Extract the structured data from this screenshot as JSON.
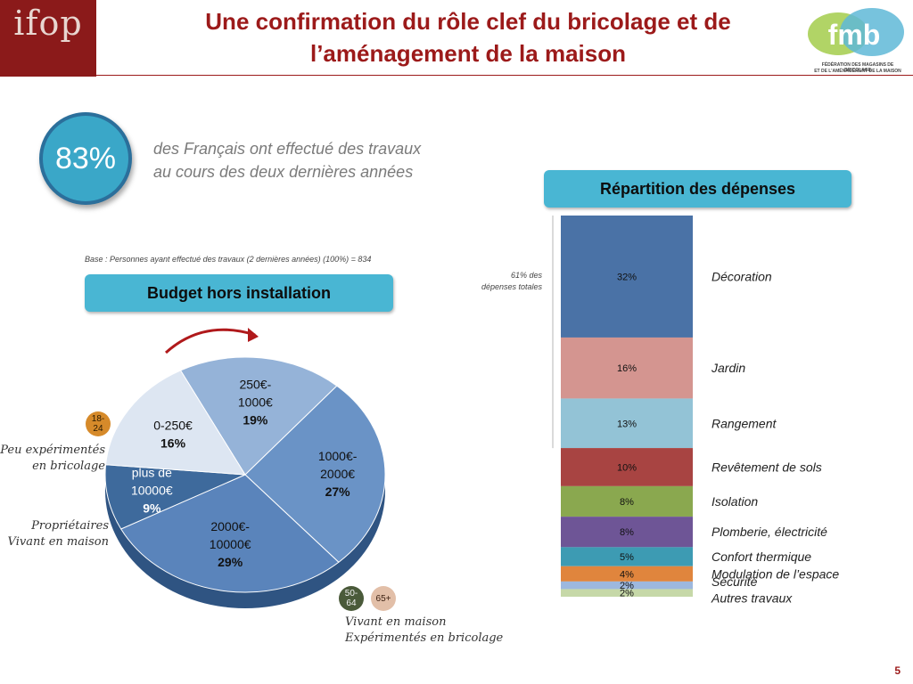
{
  "header": {
    "brand_logo": "ifop",
    "title_line1": "Une confirmation du rôle clef du bricolage et de",
    "title_line2": "l’aménagement de la maison",
    "partner_logo": "fmb",
    "partner_sub1": "FÉDÉRATION DES MAGASINS DE BRICOLAGE",
    "partner_sub2": "ET DE L’AMÉNAGEMENT DE LA MAISON"
  },
  "kpi": {
    "value": "83%",
    "text_line1": "des Français ont effectué des travaux",
    "text_line2": "au cours des deux dernières années"
  },
  "base_note": "Base : Personnes ayant effectué des travaux (2 dernières années) (100%) = 834",
  "budget_title": "Budget hors installation",
  "repartition_title": "Répartition des dépenses",
  "note_61_line1": "61% des",
  "note_61_line2": "dépenses totales",
  "age_badges": {
    "b1824": "18-\n24",
    "b5064": "50-\n64",
    "b65": "65+"
  },
  "profiles": {
    "left_top_line1": "Peu expérimentés",
    "left_top_line2": "en bricolage",
    "left_bottom_line1": "Propriétaires",
    "left_bottom_line2": "Vivant en maison",
    "bottom_line1": "Vivant en maison",
    "bottom_line2": "Expérimentés en bricolage"
  },
  "chart_data": [
    {
      "type": "pie",
      "title": "Budget hors installation",
      "categories": [
        "250€-1000€",
        "1000€-2000€",
        "2000€-10000€",
        "plus de 10000€",
        "0-250€"
      ],
      "label_lines": [
        [
          "250€-",
          "1000€"
        ],
        [
          "1000€-",
          "2000€"
        ],
        [
          "2000€-",
          "10000€"
        ],
        [
          "plus de",
          "10000€"
        ],
        [
          "0-250€"
        ]
      ],
      "values": [
        19,
        27,
        29,
        9,
        16
      ],
      "value_labels": [
        "19%",
        "27%",
        "29%",
        "9%",
        "16%"
      ],
      "colors": [
        "#95b3d8",
        "#6a93c6",
        "#5a84bb",
        "#3e6a9c",
        "#dde6f2"
      ]
    },
    {
      "type": "bar",
      "stacked": true,
      "title": "Répartition des dépenses",
      "categories": [
        "Décoration",
        "Jardin",
        "Rangement",
        "Revêtement de sols",
        "Isolation",
        "Plomberie, électricité",
        "Confort thermique",
        "Modulation de l’espace",
        "Sécurité",
        "Autres travaux"
      ],
      "values": [
        32,
        16,
        13,
        10,
        8,
        8,
        5,
        4,
        2,
        2
      ],
      "value_labels": [
        "32%",
        "16%",
        "13%",
        "10%",
        "8%",
        "8%",
        "5%",
        "4%",
        "2%",
        "2%"
      ],
      "colors": [
        "#4a72a6",
        "#d49590",
        "#93c3d6",
        "#a84442",
        "#8aa84f",
        "#6e5596",
        "#3d9bb3",
        "#e0853d",
        "#9db8de",
        "#c6d8a8"
      ],
      "annotation": "61% des dépenses totales"
    }
  ],
  "page_number": "5",
  "colors": {
    "accent_red": "#9c1a1a",
    "accent_blue": "#49b6d3"
  }
}
